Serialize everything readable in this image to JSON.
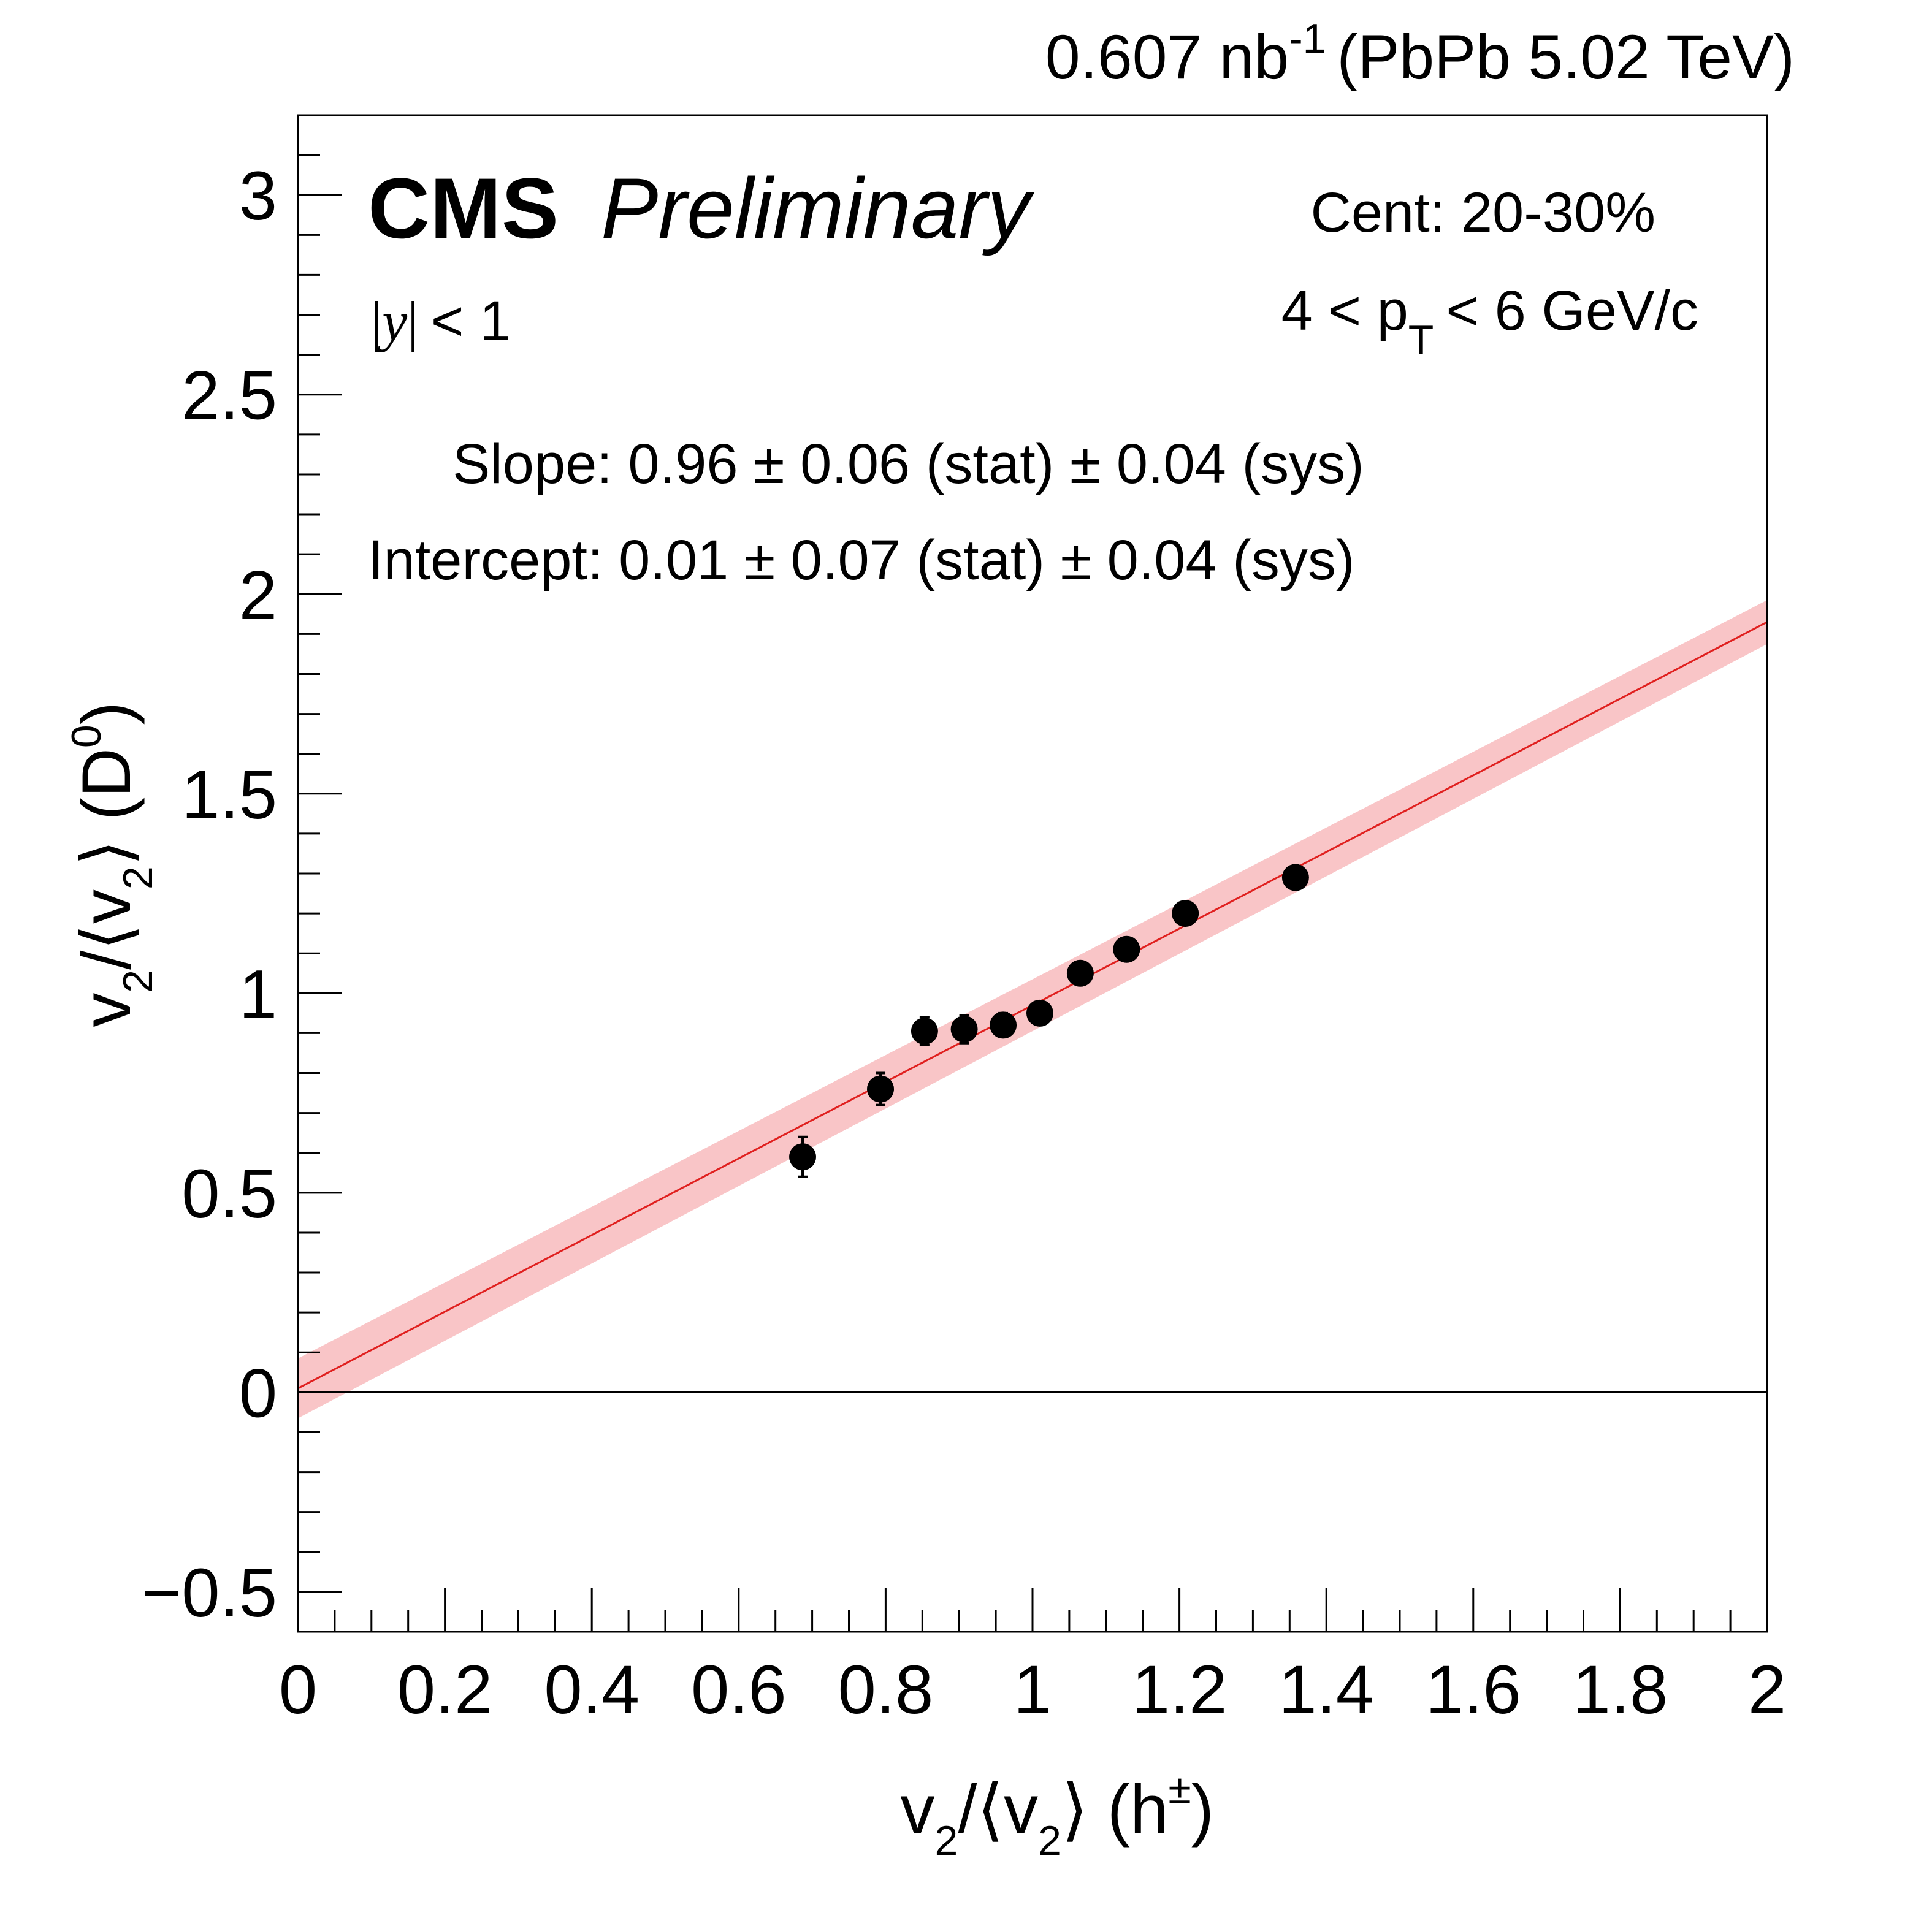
{
  "chart_data": {
    "type": "scatter",
    "header": {
      "lumi_value": "0.607 nb",
      "lumi_exp": "-1",
      "dataset": "(PbPb 5.02 TeV)"
    },
    "labels": {
      "cms": "CMS",
      "preliminary": "Preliminary",
      "rapidity_var": "y",
      "rapidity_cut": "< 1",
      "centrality": "Cent: 20-30%",
      "pt_lo": "4 < p",
      "pt_sub": "T",
      "pt_hi": "< 6 GeV/c",
      "slope": "Slope: 0.96 ± 0.06 (stat) ± 0.04 (sys)",
      "intercept": "Intercept: 0.01 ± 0.07 (stat) ± 0.04 (sys)"
    },
    "xaxis": {
      "title_parts": [
        "v",
        "2",
        "/⟨v",
        "2",
        "⟩ (h",
        "±",
        ")"
      ],
      "range": [
        0,
        2
      ],
      "ticks": [
        0,
        0.2,
        0.4,
        0.6,
        0.8,
        1,
        1.2,
        1.4,
        1.6,
        1.8,
        2
      ],
      "tick_labels": [
        "0",
        "0.2",
        "0.4",
        "0.6",
        "0.8",
        "1",
        "1.2",
        "1.4",
        "1.6",
        "1.8",
        "2"
      ]
    },
    "yaxis": {
      "title_parts": [
        "v",
        "2",
        "/⟨v",
        "2",
        "⟩ (D",
        "0",
        ")"
      ],
      "range": [
        -0.6,
        3.2
      ],
      "ticks": [
        -0.5,
        0,
        0.5,
        1,
        1.5,
        2,
        2.5,
        3
      ],
      "tick_labels": [
        "−0.5",
        "0",
        "0.5",
        "1",
        "1.5",
        "2",
        "2.5",
        "3"
      ]
    },
    "series": [
      {
        "x": [
          0.687,
          0.793,
          0.853,
          0.907,
          0.96,
          1.01,
          1.065,
          1.128,
          1.208,
          1.358
        ],
        "y": [
          0.59,
          0.76,
          0.905,
          0.91,
          0.92,
          0.95,
          1.05,
          1.11,
          1.2,
          1.29
        ],
        "yerr": [
          0.05,
          0.04,
          0.035,
          0.035,
          0.03,
          0.025,
          0.025,
          0.02,
          0.02,
          0.02
        ]
      }
    ],
    "fit": {
      "slope": 0.96,
      "intercept": 0.01,
      "band_halfwidth_at_0": 0.075,
      "band_halfwidth_at_2": 0.055,
      "line_color": "#e0201f",
      "band_color": "#f9c5c7"
    },
    "reference_line_y": 0,
    "grid": false,
    "marker_color": "#000000"
  }
}
